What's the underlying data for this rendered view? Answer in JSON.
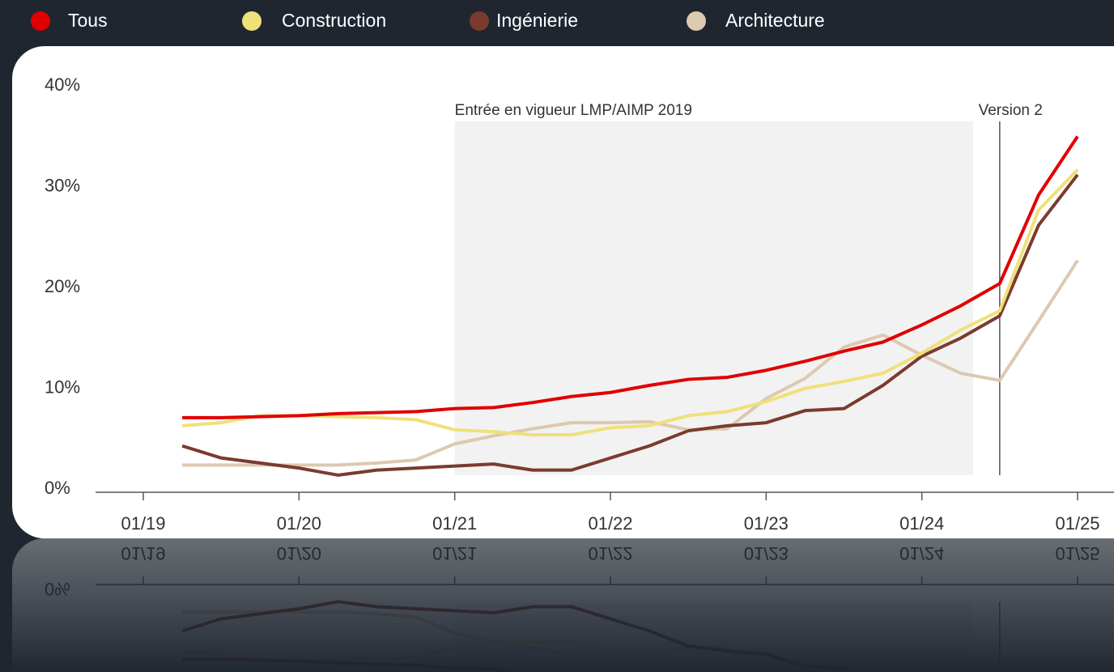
{
  "chart_data": {
    "type": "line",
    "x": [
      2019.25,
      2019.5,
      2019.75,
      2020,
      2020.25,
      2020.5,
      2020.75,
      2021,
      2021.25,
      2021.5,
      2021.75,
      2022,
      2022.25,
      2022.5,
      2022.75,
      2023,
      2023.25,
      2023.5,
      2023.75,
      2024,
      2024.25,
      2024.5,
      2024.75,
      2025
    ],
    "series": [
      {
        "name": "Tous",
        "color": "#e00000",
        "values": [
          7.4,
          7.4,
          7.5,
          7.6,
          7.8,
          7.9,
          8.0,
          8.3,
          8.4,
          8.9,
          9.5,
          9.9,
          10.6,
          11.2,
          11.4,
          12.1,
          13.0,
          14.0,
          14.9,
          16.6,
          18.5,
          20.7,
          29.5,
          35.3
        ]
      },
      {
        "name": "Construction",
        "color": "#f0e07a",
        "values": [
          6.6,
          6.9,
          7.6,
          7.6,
          7.5,
          7.4,
          7.2,
          6.2,
          6.0,
          5.7,
          5.7,
          6.4,
          6.6,
          7.6,
          8.0,
          9.0,
          10.3,
          11.0,
          11.8,
          13.8,
          16.1,
          18.0,
          28.0,
          32.0
        ]
      },
      {
        "name": "Ingénierie",
        "color": "#7a3b2e",
        "values": [
          4.6,
          3.4,
          2.9,
          2.4,
          1.7,
          2.2,
          2.4,
          2.6,
          2.8,
          2.2,
          2.2,
          3.4,
          4.6,
          6.1,
          6.6,
          6.9,
          8.1,
          8.3,
          10.6,
          13.5,
          15.3,
          17.5,
          26.5,
          31.5
        ]
      },
      {
        "name": "Architecture",
        "color": "#dcc9b0",
        "values": [
          2.7,
          2.7,
          2.7,
          2.7,
          2.7,
          2.9,
          3.2,
          4.8,
          5.6,
          6.3,
          6.9,
          6.9,
          7.0,
          6.2,
          6.3,
          9.3,
          11.3,
          14.4,
          15.6,
          13.6,
          11.8,
          11.1,
          17.0,
          23.0
        ]
      }
    ],
    "xlim": [
      2018.7,
      2025.2
    ],
    "xticks": [
      {
        "value": 2019,
        "label": "01/19"
      },
      {
        "value": 2020,
        "label": "01/20"
      },
      {
        "value": 2021,
        "label": "01/21"
      },
      {
        "value": 2022,
        "label": "01/22"
      },
      {
        "value": 2023,
        "label": "01/23"
      },
      {
        "value": 2024,
        "label": "01/24"
      },
      {
        "value": 2025,
        "label": "01/25"
      }
    ],
    "ylim": [
      0,
      40
    ],
    "yticks": [
      {
        "value": 0,
        "label": "0%"
      },
      {
        "value": 10,
        "label": "10%"
      },
      {
        "value": 20,
        "label": "20%"
      },
      {
        "value": 30,
        "label": "30%"
      },
      {
        "value": 40,
        "label": "40%"
      }
    ],
    "annotations": [
      {
        "text": "Entrée en vigueur LMP/AIMP 2019",
        "x_start": 2021,
        "x_end": 2024.33,
        "y_start": 1.7,
        "y_end": 36.8
      },
      {
        "text": "Version 2",
        "x": 2024.5
      }
    ]
  }
}
